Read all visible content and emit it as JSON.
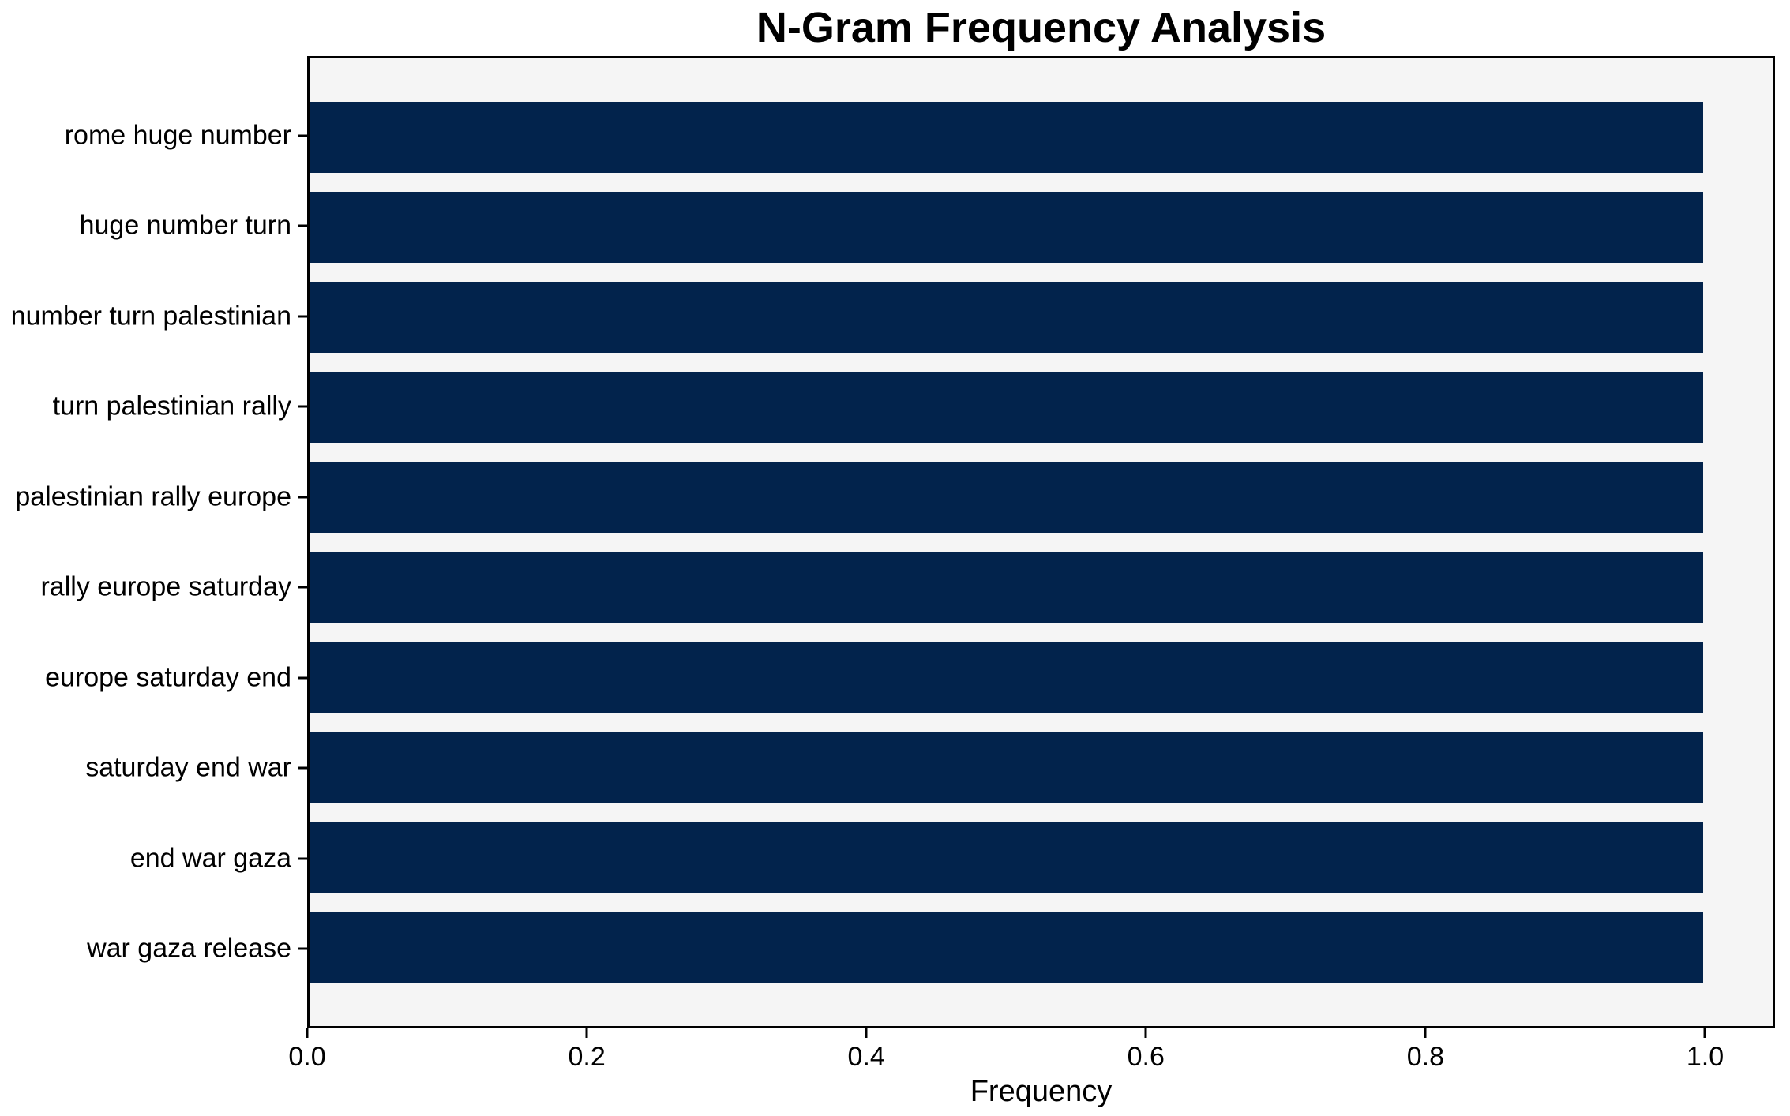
{
  "chart_data": {
    "type": "bar",
    "orientation": "horizontal",
    "title": "N-Gram Frequency Analysis",
    "xlabel": "Frequency",
    "ylabel": "",
    "categories": [
      "rome huge number",
      "huge number turn",
      "number turn palestinian",
      "turn palestinian rally",
      "palestinian rally europe",
      "rally europe saturday",
      "europe saturday end",
      "saturday end war",
      "end war gaza",
      "war gaza release"
    ],
    "values": [
      1.0,
      1.0,
      1.0,
      1.0,
      1.0,
      1.0,
      1.0,
      1.0,
      1.0,
      1.0
    ],
    "xlim": [
      0,
      1.05
    ],
    "xticks": [
      "0.0",
      "0.2",
      "0.4",
      "0.6",
      "0.8",
      "1.0"
    ],
    "xtick_values": [
      0.0,
      0.2,
      0.4,
      0.6,
      0.8,
      1.0
    ],
    "grid": false,
    "colors": {
      "bar": "#02234c",
      "plot_background": "#f5f5f5",
      "figure_background": "#ffffff",
      "axis": "#000000",
      "text": "#000000"
    }
  }
}
